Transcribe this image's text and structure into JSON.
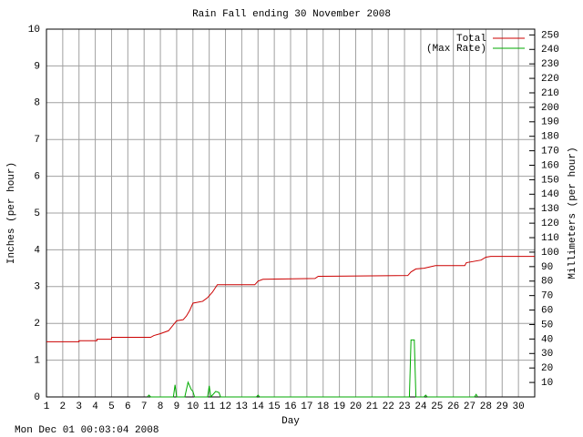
{
  "chart_data": {
    "type": "line",
    "title": "Rain Fall ending 30 November 2008",
    "x_label": "Day",
    "y_label": "Inches (per hour)",
    "y2_label": "Millimeters (per hour)",
    "timestamp": "Mon Dec 01 00:03:04 2008",
    "xlim": [
      1,
      31
    ],
    "xticks": [
      1,
      2,
      3,
      4,
      5,
      6,
      7,
      8,
      9,
      10,
      11,
      12,
      13,
      14,
      15,
      16,
      17,
      18,
      19,
      20,
      21,
      22,
      23,
      24,
      25,
      26,
      27,
      28,
      29,
      30
    ],
    "ylim": [
      0,
      10
    ],
    "yticks": [
      0,
      1,
      2,
      3,
      4,
      5,
      6,
      7,
      8,
      9,
      10
    ],
    "y2lim": [
      0,
      254
    ],
    "y2ticks": [
      10,
      20,
      30,
      40,
      50,
      60,
      70,
      80,
      90,
      100,
      110,
      120,
      130,
      140,
      150,
      160,
      170,
      180,
      190,
      200,
      210,
      220,
      230,
      240,
      250
    ],
    "grid": true,
    "legend": "top-right",
    "series": [
      {
        "name": "Total",
        "color": "#cc0000",
        "x": [
          1,
          3,
          3,
          4.1,
          4.1,
          5,
          5,
          7.4,
          7.6,
          8,
          8.5,
          9,
          9.4,
          9.6,
          9.8,
          10,
          10.6,
          10.9,
          11.2,
          11.5,
          13.8,
          14,
          14.3,
          17.5,
          17.7,
          23.2,
          23.4,
          23.7,
          24.2,
          24.9,
          26.7,
          26.8,
          27.7,
          28,
          28.3,
          31
        ],
        "values": [
          1.5,
          1.5,
          1.53,
          1.53,
          1.57,
          1.57,
          1.62,
          1.62,
          1.67,
          1.72,
          1.8,
          2.07,
          2.1,
          2.2,
          2.35,
          2.55,
          2.6,
          2.7,
          2.85,
          3.05,
          3.05,
          3.15,
          3.2,
          3.22,
          3.28,
          3.3,
          3.4,
          3.48,
          3.5,
          3.57,
          3.57,
          3.65,
          3.72,
          3.8,
          3.82,
          3.82
        ]
      },
      {
        "name": "(Max Rate)",
        "color": "#00aa00",
        "x": [
          7.2,
          7.3,
          7.4,
          8.8,
          8.9,
          9.0,
          9.5,
          9.7,
          9.9,
          10.0,
          10.1,
          10.9,
          11.0,
          11.1,
          11.4,
          11.6,
          11.7,
          13.9,
          14.0,
          14.1,
          23.3,
          23.4,
          23.6,
          23.7,
          24.2,
          24.3,
          24.4,
          27.3,
          27.4,
          27.5
        ],
        "values": [
          0,
          0.05,
          0,
          0,
          0.33,
          0,
          0,
          0.4,
          0.2,
          0.15,
          0,
          0,
          0.3,
          0,
          0.15,
          0.12,
          0,
          0,
          0.05,
          0,
          0,
          1.55,
          1.55,
          0,
          0,
          0.05,
          0,
          0,
          0.07,
          0
        ]
      }
    ]
  }
}
